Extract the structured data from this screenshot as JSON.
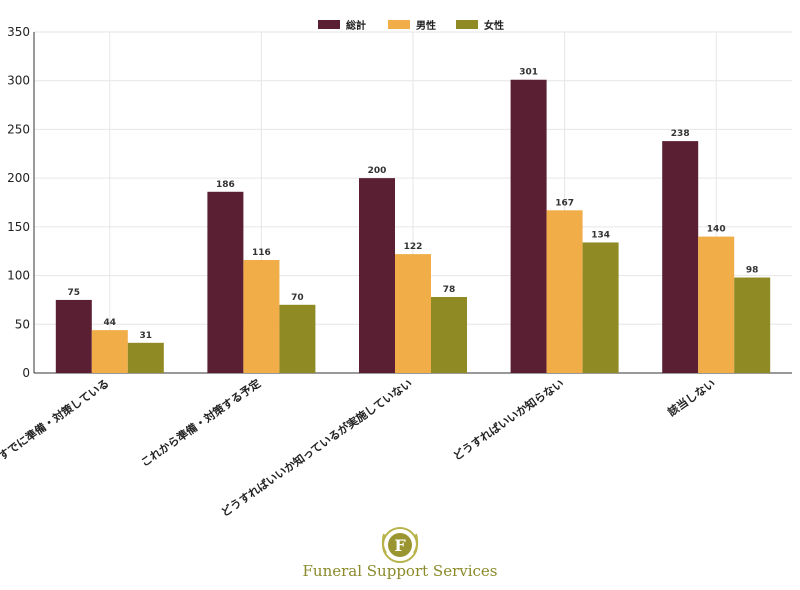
{
  "chart_data": {
    "type": "bar",
    "categories": [
      "すでに準備・対策している",
      "これから準備・対策する予定",
      "どうすればいいか知っているが実施していない",
      "どうすればいいか知らない",
      "該当しない"
    ],
    "series": [
      {
        "name": "総計",
        "values": [
          75,
          186,
          200,
          301,
          238
        ],
        "color": "#5a1f33"
      },
      {
        "name": "男性",
        "values": [
          44,
          116,
          122,
          167,
          140
        ],
        "color": "#f0ad48"
      },
      {
        "name": "女性",
        "values": [
          31,
          70,
          78,
          134,
          98
        ],
        "color": "#8f8a24"
      }
    ],
    "ylim": [
      0,
      350
    ],
    "yticks": [
      0,
      50,
      100,
      150,
      200,
      250,
      300,
      350
    ],
    "grid": true,
    "legend_position": "top-center",
    "title": "",
    "xlabel": "",
    "ylabel": ""
  },
  "branding": {
    "logo_letter": "F",
    "company_name": "Funeral Support Services",
    "logo_icon": "laurel-wreath-icon",
    "color": "#9a9530"
  }
}
